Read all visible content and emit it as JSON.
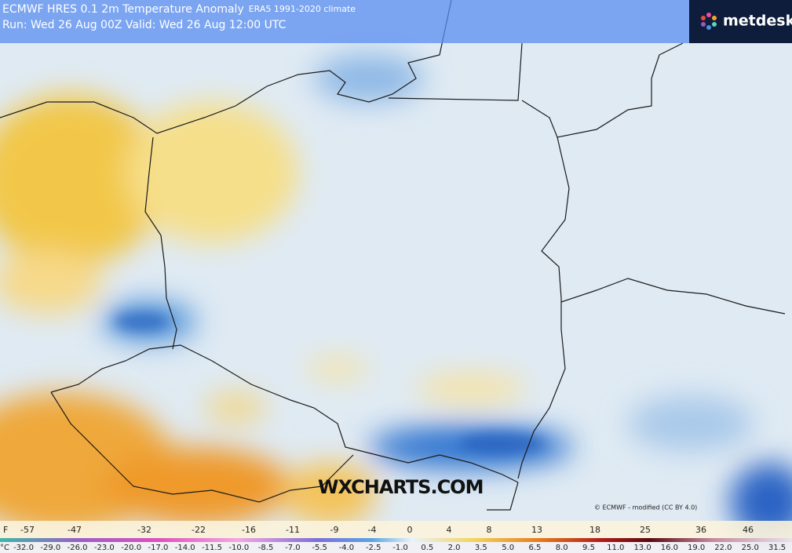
{
  "header": {
    "title": "ECMWF HRES 0.1 2m Temperature Anomaly",
    "climate": "ERA5 1991-2020 climate",
    "run": "Run: Wed 26 Aug 00Z Valid: Wed 26 Aug 12:00 UTC",
    "logo": "metdesk"
  },
  "watermark": "WXCHARTS.COM",
  "credit": "© ECMWF - modified (CC BY 4.0)",
  "legend": {
    "f_unit": "F",
    "f_labels": [
      "-57",
      "-47",
      "-32",
      "-22",
      "-16",
      "-11",
      "-9",
      "-4",
      "0",
      "4",
      "8",
      "13",
      "18",
      "25",
      "36",
      "46"
    ],
    "c_unit": "°C",
    "c_labels": [
      "-32.0",
      "-29.0",
      "-26.0",
      "-23.0",
      "-20.0",
      "-17.0",
      "-14.0",
      "-11.5",
      "-10.0",
      "-8.5",
      "-7.0",
      "-5.5",
      "-4.0",
      "-2.5",
      "-1.0",
      "0.5",
      "2.0",
      "3.5",
      "5.0",
      "6.5",
      "8.0",
      "9.5",
      "11.0",
      "13.0",
      "16.0",
      "19.0",
      "22.0",
      "25.0",
      "31.5"
    ]
  }
}
